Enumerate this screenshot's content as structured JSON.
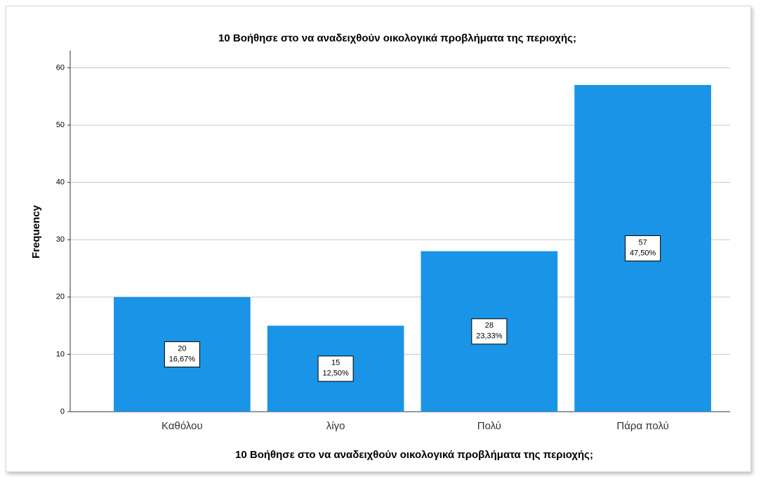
{
  "chart_data": {
    "type": "bar",
    "title": "10 Βοήθησε στο να αναδειχθούν οικολογικά προβλήματα της περιοχής;",
    "x_label": "10 Βοήθησε στο να αναδειχθούν οικολογικά προβλήματα της περιοχής;",
    "y_label": "Frequency",
    "categories": [
      "Καθόλου",
      "λίγο",
      "Πολύ",
      "Πάρα πολύ"
    ],
    "values": [
      20,
      15,
      28,
      57
    ],
    "percent_labels": [
      "16,67%",
      "12,50%",
      "23,33%",
      "47,50%"
    ],
    "color": "#1a94e6",
    "ylim": [
      0,
      63
    ],
    "yticks": [
      0,
      10,
      20,
      30,
      40,
      50,
      60
    ],
    "grid": true
  }
}
